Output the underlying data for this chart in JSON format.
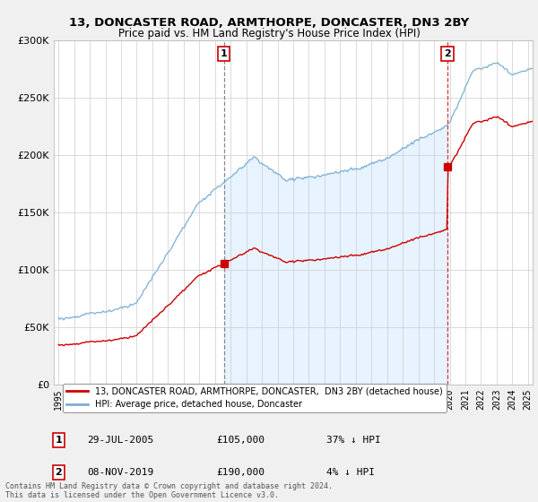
{
  "title": "13, DONCASTER ROAD, ARMTHORPE, DONCASTER, DN3 2BY",
  "subtitle": "Price paid vs. HM Land Registry's House Price Index (HPI)",
  "legend_label_red": "13, DONCASTER ROAD, ARMTHORPE, DONCASTER,  DN3 2BY (detached house)",
  "legend_label_blue": "HPI: Average price, detached house, Doncaster",
  "annotation1_date": "29-JUL-2005",
  "annotation1_price": "£105,000",
  "annotation1_hpi": "37% ↓ HPI",
  "annotation1_year": 2005.57,
  "annotation1_value": 105000,
  "annotation2_date": "08-NOV-2019",
  "annotation2_price": "£190,000",
  "annotation2_hpi": "4% ↓ HPI",
  "annotation2_year": 2019.85,
  "annotation2_value": 190000,
  "footer": "Contains HM Land Registry data © Crown copyright and database right 2024.\nThis data is licensed under the Open Government Licence v3.0.",
  "red_color": "#cc0000",
  "blue_color": "#7bafd4",
  "shade_color": "#ddeeff",
  "bg_color": "#f0f0f0",
  "plot_bg_color": "#ffffff",
  "ylim": [
    0,
    300000
  ],
  "xlim_start": 1994.7,
  "xlim_end": 2025.3
}
